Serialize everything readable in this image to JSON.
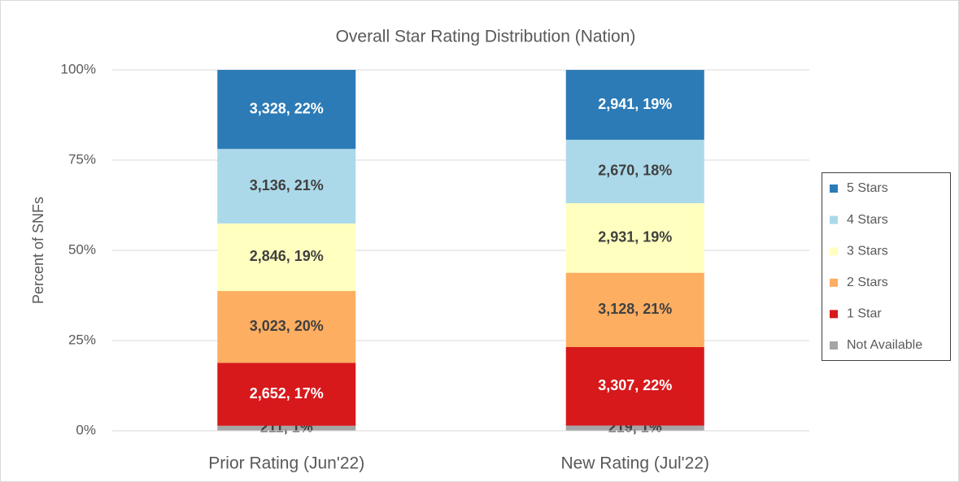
{
  "chart_data": {
    "type": "stacked_bar",
    "title": "Overall Star Rating Distribution (Nation)",
    "y_label": "Percent of SNFs",
    "categories": [
      "Prior Rating (Jun'22)",
      "New Rating (Jul'22)"
    ],
    "series": [
      {
        "name": "Not Available",
        "color": "#a5a5a5",
        "label_color": "#404040",
        "values": [
          1.39,
          1.44
        ],
        "value_labels": [
          "211, 1%",
          "219, 1%"
        ]
      },
      {
        "name": "1 Star",
        "color": "#d7191c",
        "label_color": "#ffffff",
        "values": [
          17.45,
          21.76
        ],
        "value_labels": [
          "2,652, 17%",
          "3,307, 22%"
        ]
      },
      {
        "name": "2 Stars",
        "color": "#fdae61",
        "label_color": "#404040",
        "values": [
          19.89,
          20.58
        ],
        "value_labels": [
          "3,023, 20%",
          "3,128, 21%"
        ]
      },
      {
        "name": "3 Stars",
        "color": "#ffffbf",
        "label_color": "#404040",
        "values": [
          18.73,
          19.29
        ],
        "value_labels": [
          "2,846, 19%",
          "2,931, 19%"
        ]
      },
      {
        "name": "4 Stars",
        "color": "#abd9e9",
        "label_color": "#404040",
        "values": [
          20.64,
          17.57
        ],
        "value_labels": [
          "3,136, 21%",
          "2,670, 18%"
        ]
      },
      {
        "name": "5 Stars",
        "color": "#2c7bb6",
        "label_color": "#ffffff",
        "values": [
          21.9,
          19.35
        ],
        "value_labels": [
          "3,328, 22%",
          "2,941, 19%"
        ]
      }
    ],
    "ylim": [
      0,
      100
    ],
    "yticks": [
      {
        "value": 0,
        "label": "0%"
      },
      {
        "value": 25,
        "label": "25%"
      },
      {
        "value": 50,
        "label": "50%"
      },
      {
        "value": 75,
        "label": "75%"
      },
      {
        "value": 100,
        "label": "100%"
      }
    ],
    "grid": true,
    "legend": "right"
  }
}
